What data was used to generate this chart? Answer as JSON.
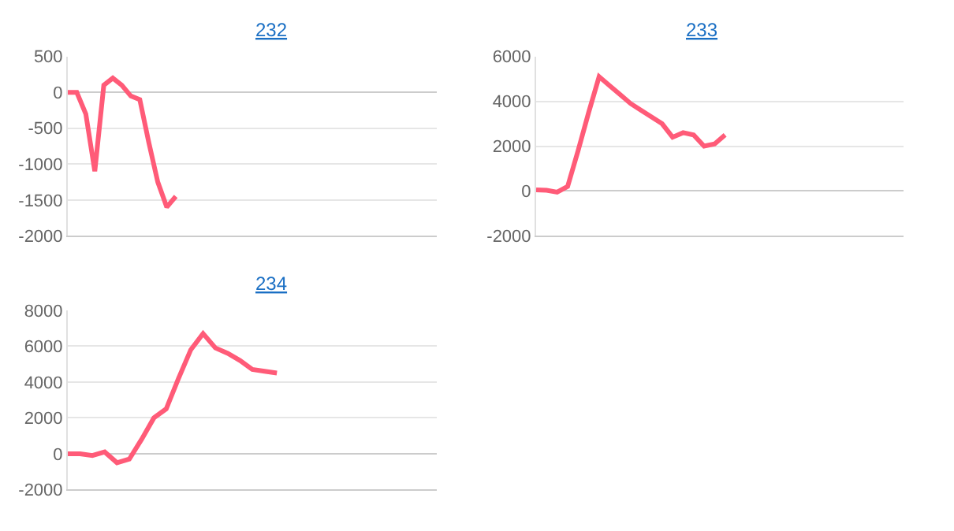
{
  "chart_data": [
    {
      "type": "line",
      "title": "232",
      "categories": [
        null,
        null,
        null,
        null,
        null,
        null,
        null,
        null,
        null,
        null,
        null,
        null,
        null,
        null,
        null,
        null,
        null,
        null,
        null,
        null,
        null,
        null,
        null,
        null,
        null,
        null,
        null,
        null,
        null,
        null,
        null,
        null,
        null,
        null,
        null,
        null,
        null,
        null,
        null,
        null,
        null,
        null
      ],
      "series": [
        {
          "color": "#ff5b78",
          "values": [
            0,
            0,
            -300,
            -1100,
            100,
            200,
            100,
            -50,
            -100,
            -700,
            -1250,
            -1600,
            -1450,
            null,
            null,
            null,
            null,
            null,
            null,
            null,
            null,
            null,
            null,
            null,
            null,
            null,
            null,
            null,
            null,
            null,
            null,
            null,
            null,
            null,
            null,
            null,
            null,
            null,
            null,
            null,
            null,
            null
          ]
        }
      ],
      "ylim": [
        -2000,
        500
      ],
      "yticks": [
        -2000,
        -1500,
        -1000,
        -500,
        0,
        500
      ],
      "grid": "y",
      "tick_labels": "y",
      "marker": "none",
      "line_style": "solid"
    },
    {
      "type": "line",
      "title": "233",
      "categories": [
        null,
        null,
        null,
        null,
        null,
        null,
        null,
        null,
        null,
        null,
        null,
        null,
        null,
        null,
        null,
        null,
        null,
        null,
        null,
        null,
        null,
        null,
        null,
        null,
        null,
        null,
        null,
        null,
        null,
        null,
        null,
        null,
        null,
        null,
        null,
        null
      ],
      "series": [
        {
          "color": "#ff5b78",
          "values": [
            50,
            30,
            -50,
            200,
            1800,
            3500,
            5100,
            4700,
            4300,
            3900,
            3600,
            3300,
            3000,
            2400,
            2600,
            2500,
            2000,
            2100,
            2500,
            null,
            null,
            null,
            null,
            null,
            null,
            null,
            null,
            null,
            null,
            null,
            null,
            null,
            null,
            null,
            null,
            null
          ]
        }
      ],
      "ylim": [
        -2000,
        6000
      ],
      "yticks": [
        -2000,
        0,
        2000,
        4000,
        6000
      ],
      "grid": "y",
      "tick_labels": "y",
      "marker": "none",
      "line_style": "solid"
    },
    {
      "type": "line",
      "title": "234",
      "categories": [
        null,
        null,
        null,
        null,
        null,
        null,
        null,
        null,
        null,
        null,
        null,
        null,
        null,
        null,
        null,
        null,
        null,
        null,
        null,
        null,
        null,
        null,
        null,
        null,
        null,
        null,
        null,
        null,
        null,
        null,
        null
      ],
      "series": [
        {
          "color": "#ff5b78",
          "values": [
            0,
            0,
            -100,
            100,
            -500,
            -300,
            800,
            2000,
            2500,
            4200,
            5800,
            6700,
            5900,
            5600,
            5200,
            4700,
            4600,
            4500,
            null,
            null,
            null,
            null,
            null,
            null,
            null,
            null,
            null,
            null,
            null,
            null,
            null
          ]
        }
      ],
      "ylim": [
        -2000,
        8000
      ],
      "yticks": [
        -2000,
        0,
        2000,
        4000,
        6000,
        8000
      ],
      "grid": "y",
      "tick_labels": "y",
      "marker": "none",
      "line_style": "solid"
    }
  ]
}
